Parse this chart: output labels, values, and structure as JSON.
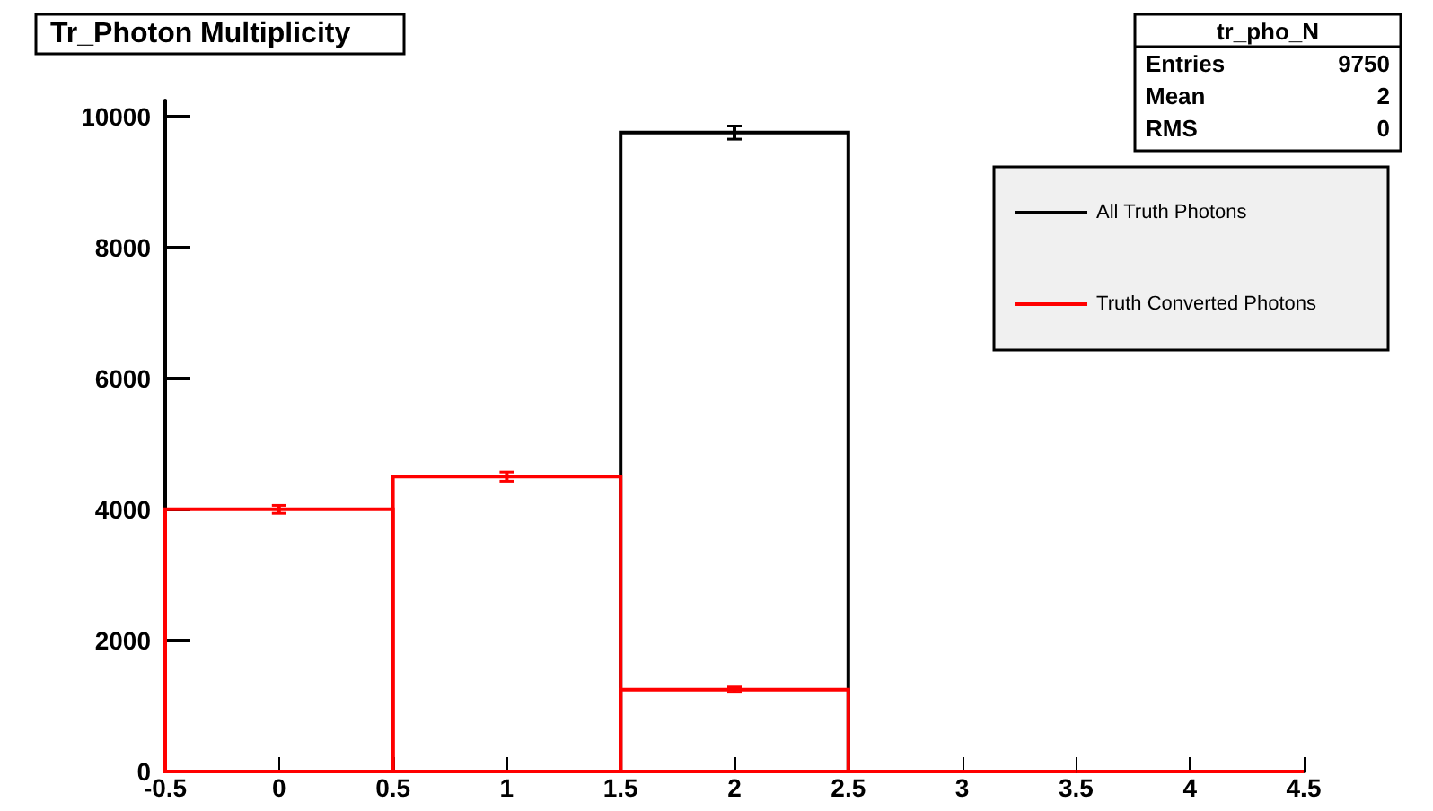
{
  "chart_data": {
    "type": "bar",
    "title": "Tr_Photon Multiplicity",
    "x": [
      0,
      1,
      2,
      3,
      4
    ],
    "series": [
      {
        "name": "All Truth Photons",
        "color": "#000000",
        "values": [
          0,
          0,
          9750,
          0,
          0
        ],
        "errors": [
          null,
          null,
          100,
          null,
          null
        ]
      },
      {
        "name": "Truth Converted Photons",
        "color": "#ff0000",
        "values": [
          4000,
          4500,
          1250,
          0,
          0
        ],
        "errors": [
          60,
          70,
          40,
          null,
          null
        ]
      }
    ],
    "xlim": [
      -0.5,
      4.5
    ],
    "xticks": [
      -0.5,
      0,
      0.5,
      1,
      1.5,
      2,
      2.5,
      3,
      3.5,
      4,
      4.5
    ],
    "ylim": [
      0,
      10240
    ],
    "yticks": [
      0,
      2000,
      4000,
      6000,
      8000,
      10000
    ],
    "legend": "top right",
    "marker": "none",
    "annotations": [
      "tr_pho_N",
      "Entries 9750",
      "Mean 2",
      "RMS 0"
    ]
  }
}
